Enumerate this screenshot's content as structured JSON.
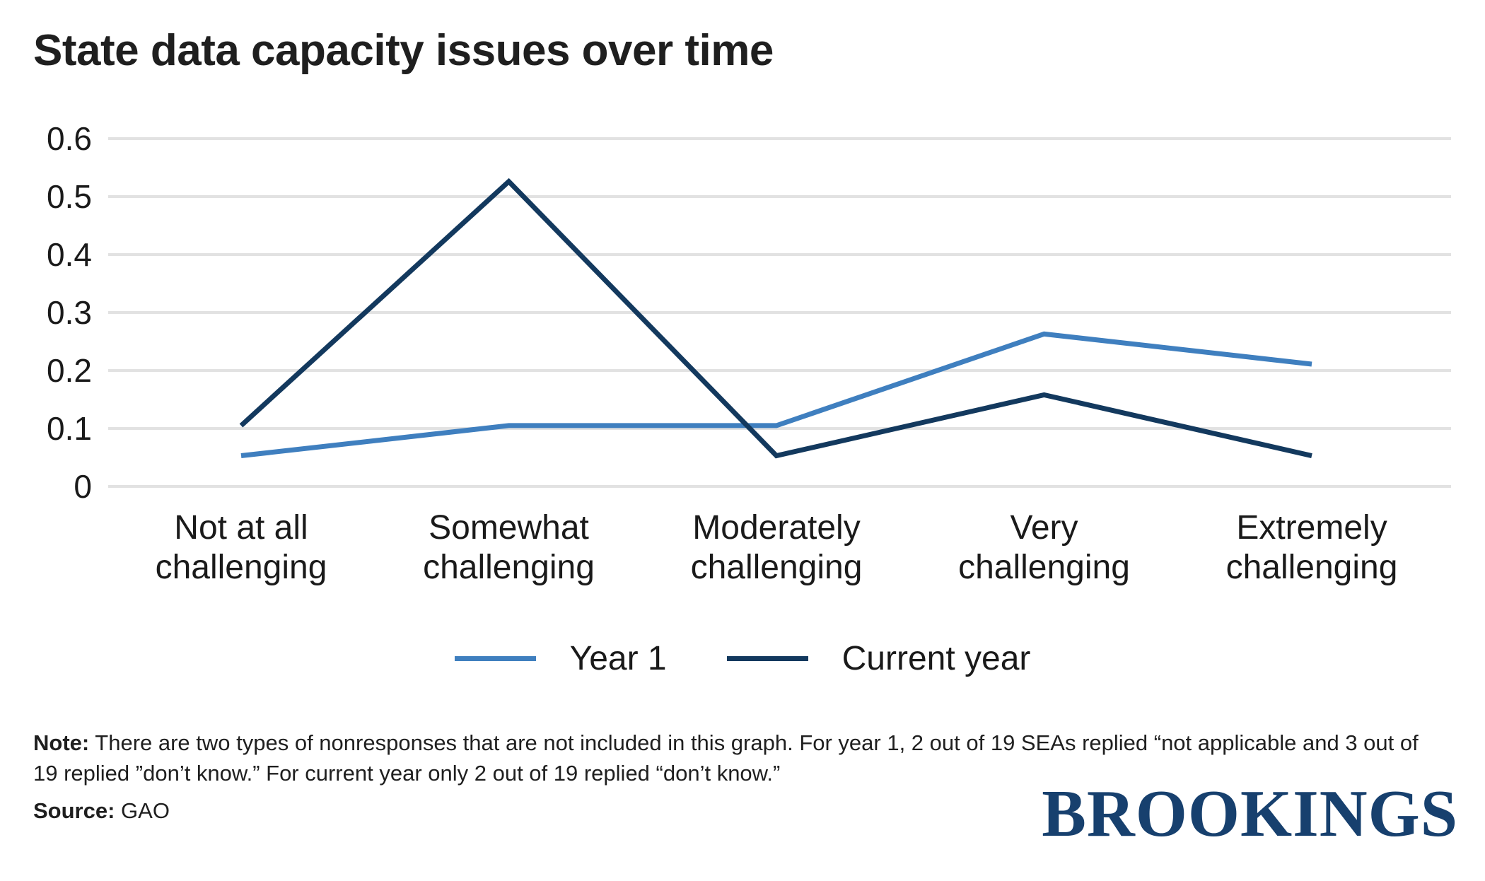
{
  "title": "State data capacity issues over time",
  "chart_data": {
    "type": "line",
    "categories": [
      "Not at all challenging",
      "Somewhat challenging",
      "Moderately challenging",
      "Very challenging",
      "Extremely challenging"
    ],
    "series": [
      {
        "name": "Year 1",
        "color": "#3F7FBF",
        "values": [
          0.053,
          0.105,
          0.105,
          0.263,
          0.211
        ]
      },
      {
        "name": "Current year",
        "color": "#13395E",
        "values": [
          0.105,
          0.526,
          0.053,
          0.158,
          0.053
        ]
      }
    ],
    "title": "State data capacity issues over time",
    "xlabel": "",
    "ylabel": "",
    "ylim": [
      0,
      0.6
    ],
    "yticks": [
      0,
      0.1,
      0.2,
      0.3,
      0.4,
      0.5,
      0.6
    ],
    "ytick_labels": [
      "0",
      "0.1",
      "0.2",
      "0.3",
      "0.4",
      "0.5",
      "0.6"
    ],
    "grid": true,
    "gridline_color": "#E2E2E2",
    "legend_position": "bottom"
  },
  "note": {
    "label": "Note:",
    "text": " There are two types of nonresponses that are not included in this graph. For year 1, 2 out of 19 SEAs replied “not applicable and 3 out of 19 replied ”don’t know.” For current year only 2 out of 19 replied “don’t know.”"
  },
  "source": {
    "label": "Source:",
    "text": " GAO"
  },
  "branding": {
    "logo_text": "BROOKINGS",
    "logo_color": "#17406E"
  }
}
